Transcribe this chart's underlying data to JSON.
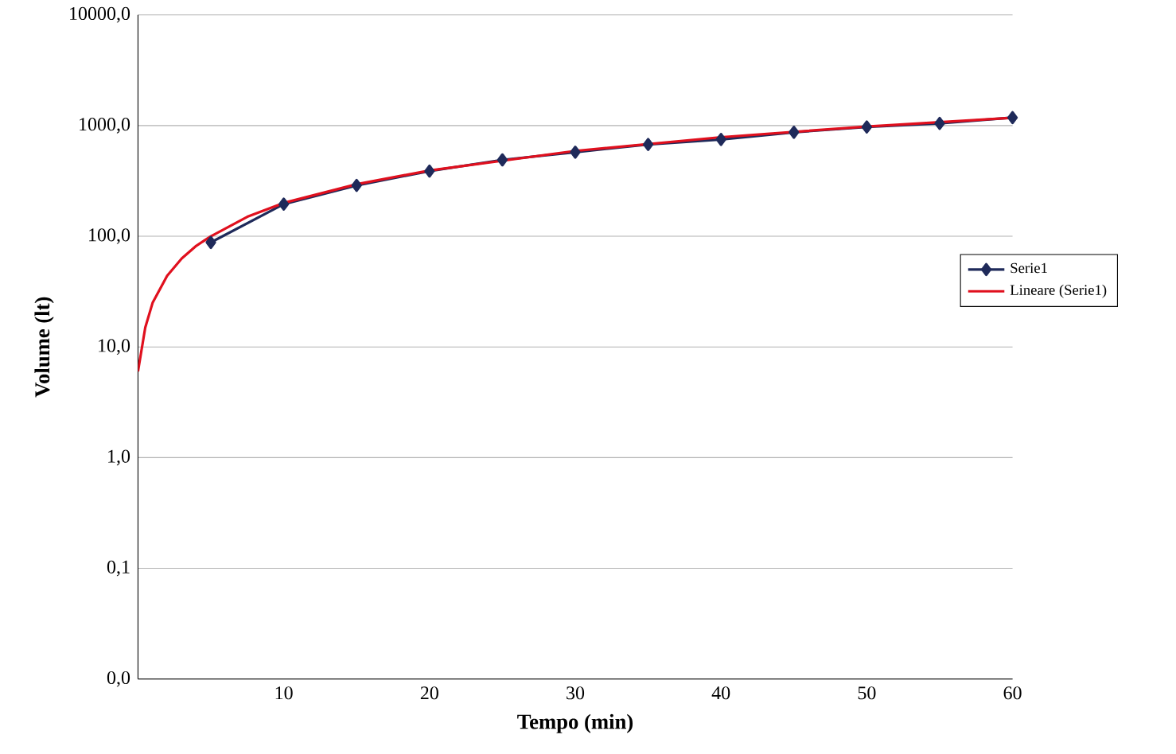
{
  "chart_data": {
    "type": "line",
    "xlabel": "Tempo (min)",
    "ylabel": "Volume (lt)",
    "log": "y",
    "xlim": [
      0,
      60
    ],
    "xticks": [
      {
        "value": 0,
        "label": null
      },
      10,
      20,
      30,
      40,
      50,
      60
    ],
    "ylim": [
      0.01,
      10000
    ],
    "yticks": [
      {
        "value": 0.01,
        "label": "0,0"
      },
      {
        "value": 0.1,
        "label": "0,1"
      },
      {
        "value": 1,
        "label": "1,0"
      },
      {
        "value": 10,
        "label": "10,0"
      },
      {
        "value": 100,
        "label": "100,0"
      },
      {
        "value": 1000,
        "label": "1000,0"
      },
      {
        "value": 10000,
        "label": "10000,0"
      }
    ],
    "grid": "y",
    "legend": "right",
    "series": [
      {
        "name": "Serie1",
        "color": "#1f2a5a",
        "marker": "diamond",
        "x": [
          5,
          10,
          15,
          20,
          25,
          30,
          35,
          40,
          45,
          50,
          55,
          60
        ],
        "values": [
          88,
          195,
          288,
          388,
          490,
          575,
          675,
          750,
          870,
          970,
          1045,
          1180
        ]
      },
      {
        "name": "Lineare (Serie1)",
        "color": "#e0101e",
        "marker": "none",
        "x": [
          0,
          0.5,
          1,
          2,
          3,
          4,
          5,
          7.5,
          10,
          15,
          20,
          30,
          40,
          50,
          60
        ],
        "values": [
          6,
          15,
          25,
          44,
          63,
          82,
          100,
          150,
          200,
          295,
          393,
          590,
          785,
          980,
          1175
        ]
      }
    ]
  }
}
